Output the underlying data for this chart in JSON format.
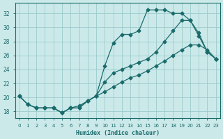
{
  "xlabel": "Humidex (Indice chaleur)",
  "background_color": "#cce9ea",
  "grid_color": "#9bcbcc",
  "line_color": "#1a6b6b",
  "xlim": [
    -0.5,
    23.5
  ],
  "ylim": [
    17.0,
    33.5
  ],
  "yticks": [
    18,
    20,
    22,
    24,
    26,
    28,
    30,
    32
  ],
  "xticks": [
    0,
    1,
    2,
    3,
    4,
    5,
    6,
    7,
    8,
    9,
    10,
    11,
    12,
    13,
    14,
    15,
    16,
    17,
    18,
    19,
    20,
    21,
    22,
    23
  ],
  "line1_x": [
    0,
    1,
    2,
    3,
    4,
    5,
    6,
    7,
    8,
    9,
    10,
    11,
    12,
    13,
    14,
    15,
    16,
    17,
    18,
    19,
    20,
    21,
    22,
    23
  ],
  "line1_y": [
    20.2,
    19.0,
    18.5,
    18.5,
    18.5,
    17.8,
    18.5,
    18.5,
    19.5,
    20.2,
    24.5,
    27.8,
    29.0,
    29.0,
    29.5,
    32.5,
    32.5,
    32.5,
    32.0,
    32.0,
    31.0,
    28.8,
    26.5,
    25.5
  ],
  "line2_x": [
    0,
    1,
    2,
    3,
    4,
    5,
    6,
    7,
    8,
    9,
    10,
    11,
    12,
    13,
    14,
    15,
    16,
    17,
    18,
    19,
    20,
    21,
    22,
    23
  ],
  "line2_y": [
    20.2,
    19.0,
    18.5,
    18.5,
    18.5,
    17.8,
    18.5,
    18.5,
    19.5,
    20.2,
    22.2,
    23.5,
    24.0,
    24.5,
    25.0,
    25.5,
    26.5,
    28.0,
    29.5,
    31.0,
    31.0,
    29.2,
    26.5,
    25.5
  ],
  "line3_x": [
    0,
    1,
    2,
    3,
    4,
    5,
    6,
    7,
    8,
    9,
    10,
    11,
    12,
    13,
    14,
    15,
    16,
    17,
    18,
    19,
    20,
    21,
    22,
    23
  ],
  "line3_y": [
    20.2,
    19.0,
    18.5,
    18.5,
    18.5,
    17.8,
    18.5,
    18.8,
    19.5,
    20.2,
    20.8,
    21.5,
    22.2,
    22.8,
    23.2,
    23.8,
    24.5,
    25.2,
    26.0,
    26.8,
    27.5,
    27.5,
    26.8,
    25.5
  ]
}
